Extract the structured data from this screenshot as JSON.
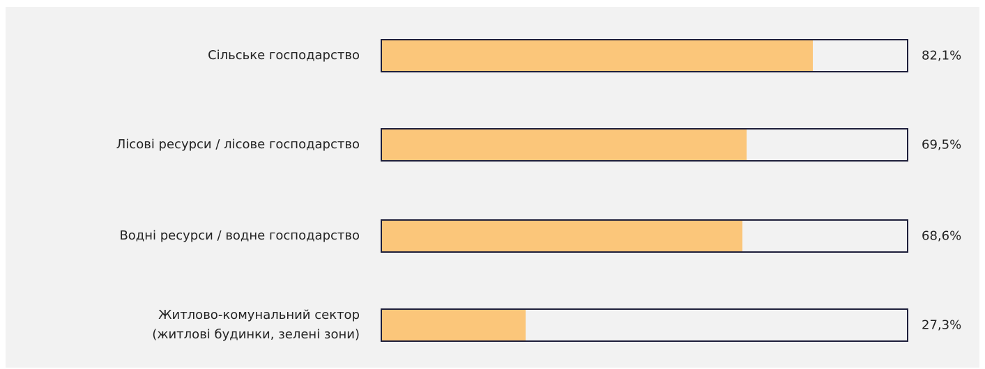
{
  "chart_data": {
    "type": "bar",
    "orientation": "horizontal",
    "categories": [
      "Сільське господарство",
      "Лісові ресурси / лісове господарство",
      "Водні ресурси / водне господарство",
      "Житлово-комунальний сектор\n(житлові будинки, зелені зони)"
    ],
    "values": [
      82.1,
      69.5,
      68.6,
      27.3
    ],
    "value_labels": [
      "82,1%",
      "69,5%",
      "68,6%",
      "27,3%"
    ],
    "color": "#fbc67a",
    "xlim": [
      0,
      100
    ]
  }
}
